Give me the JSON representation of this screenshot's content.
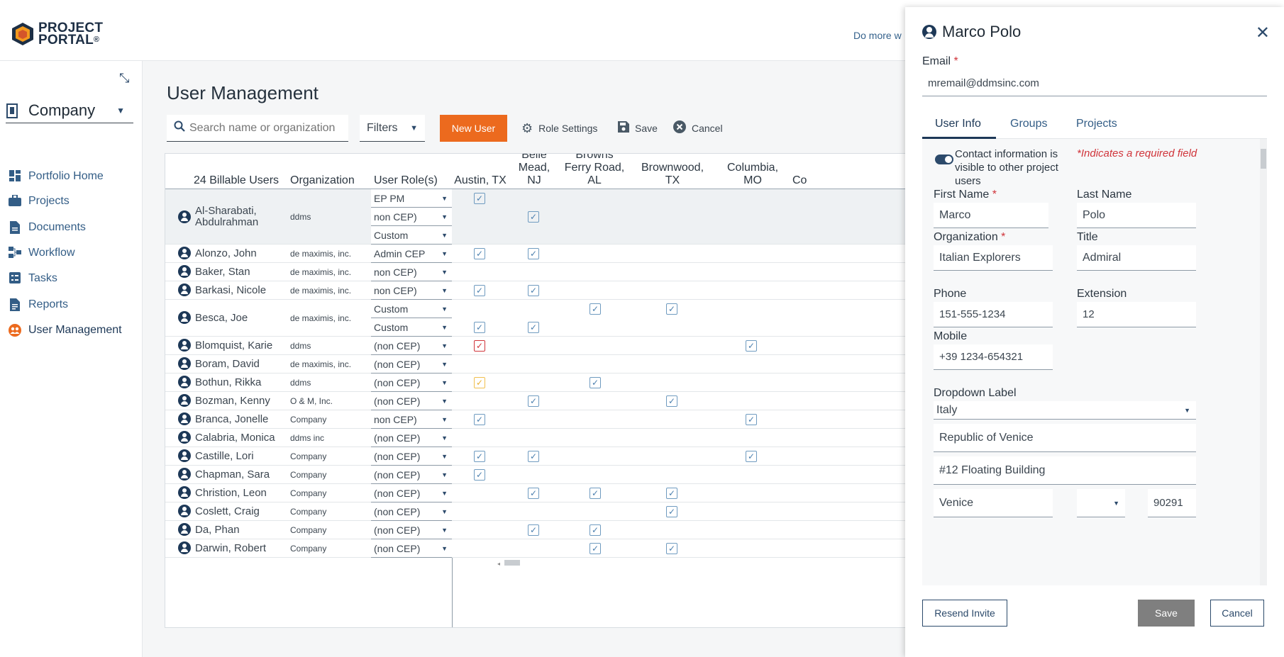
{
  "header": {
    "logo_line1": "PROJECT",
    "logo_line2": "PORTAL",
    "logo_mark": "®",
    "domore": "Do more w"
  },
  "sidebar": {
    "company": "Company",
    "items": [
      {
        "label": "Portfolio Home",
        "icon": "dashboard-icon"
      },
      {
        "label": "Projects",
        "icon": "briefcase-icon"
      },
      {
        "label": "Documents",
        "icon": "document-icon"
      },
      {
        "label": "Workflow",
        "icon": "workflow-icon"
      },
      {
        "label": "Tasks",
        "icon": "tasks-icon"
      },
      {
        "label": "Reports",
        "icon": "reports-icon"
      },
      {
        "label": "User Management",
        "icon": "user-management-icon"
      }
    ]
  },
  "main": {
    "title": "User Management",
    "search_placeholder": "Search name or organization",
    "filters": "Filters",
    "new_user": "New User",
    "role_settings": "Role Settings",
    "save": "Save",
    "cancel": "Cancel"
  },
  "grid": {
    "headers": {
      "users": "24 Billable Users",
      "org": "Organization",
      "role": "User Role(s)",
      "locs": [
        "Austin, TX",
        "Belle Mead, NJ",
        "Browns Ferry Road, AL",
        "Brownwood, TX",
        "Columbia, MO",
        "Co"
      ]
    },
    "rows": [
      {
        "name": "Al-Sharabati, Abdulrahman",
        "org": "ddms",
        "roles": [
          "EP PM",
          "non CEP)",
          "Custom"
        ]
      },
      {
        "name": "Alonzo, John",
        "org": "de maximis, inc.",
        "roles": [
          "Admin CEP"
        ]
      },
      {
        "name": "Baker, Stan",
        "org": "de maximis, inc.",
        "roles": [
          "non CEP)"
        ]
      },
      {
        "name": "Barkasi, Nicole",
        "org": "de maximis, inc.",
        "roles": [
          "non CEP)"
        ]
      },
      {
        "name": "Besca, Joe",
        "org": "de maximis, inc.",
        "roles": [
          "Custom",
          "Custom"
        ]
      },
      {
        "name": "Blomquist, Karie",
        "org": "ddms",
        "roles": [
          "(non CEP)"
        ]
      },
      {
        "name": "Boram, David",
        "org": "de maximis, inc.",
        "roles": [
          "(non CEP)"
        ]
      },
      {
        "name": "Bothun, Rikka",
        "org": "ddms",
        "roles": [
          "(non CEP)"
        ]
      },
      {
        "name": "Bozman, Kenny",
        "org": "O & M, Inc.",
        "roles": [
          "(non CEP)"
        ]
      },
      {
        "name": "Branca, Jonelle",
        "org": "Company",
        "roles": [
          "non CEP)"
        ]
      },
      {
        "name": "Calabria, Monica",
        "org": "ddms inc",
        "roles": [
          "(non CEP)"
        ]
      },
      {
        "name": "Castille, Lori",
        "org": "Company",
        "roles": [
          "(non CEP)"
        ]
      },
      {
        "name": "Chapman, Sara",
        "org": "Company",
        "roles": [
          "(non CEP)"
        ]
      },
      {
        "name": "Christion, Leon",
        "org": "Company",
        "roles": [
          "(non CEP)"
        ]
      },
      {
        "name": "Coslett, Craig",
        "org": "Company",
        "roles": [
          "(non CEP)"
        ]
      },
      {
        "name": "Da, Phan",
        "org": "Company",
        "roles": [
          "(non CEP)"
        ]
      },
      {
        "name": "Darwin, Robert",
        "org": "Company",
        "roles": [
          "(non CEP)"
        ]
      }
    ]
  },
  "drawer": {
    "name": "Marco Polo",
    "email_label": "Email",
    "email": "mremail@ddmsinc.com",
    "tabs": [
      "User Info",
      "Groups",
      "Projects"
    ],
    "contact_visible": "Contact information is visible to other project users",
    "required_note": "*Indicates a required field",
    "first_name_label": "First Name",
    "first_name": "Marco",
    "last_name_label": "Last Name",
    "last_name": "Polo",
    "org_label": "Organization",
    "org": "Italian Explorers",
    "title_label": "Title",
    "title": "Admiral",
    "phone_label": "Phone",
    "phone": "151-555-1234",
    "ext_label": "Extension",
    "ext": "12",
    "mobile_label": "Mobile",
    "mobile": "+39 1234-654321",
    "dropdown_label": "Dropdown Label",
    "country": "Italy",
    "addr1": "Republic of Venice",
    "addr2": "#12 Floating Building",
    "city": "Venice",
    "zip": "90291",
    "resend": "Resend Invite",
    "save": "Save",
    "cancel": "Cancel"
  }
}
